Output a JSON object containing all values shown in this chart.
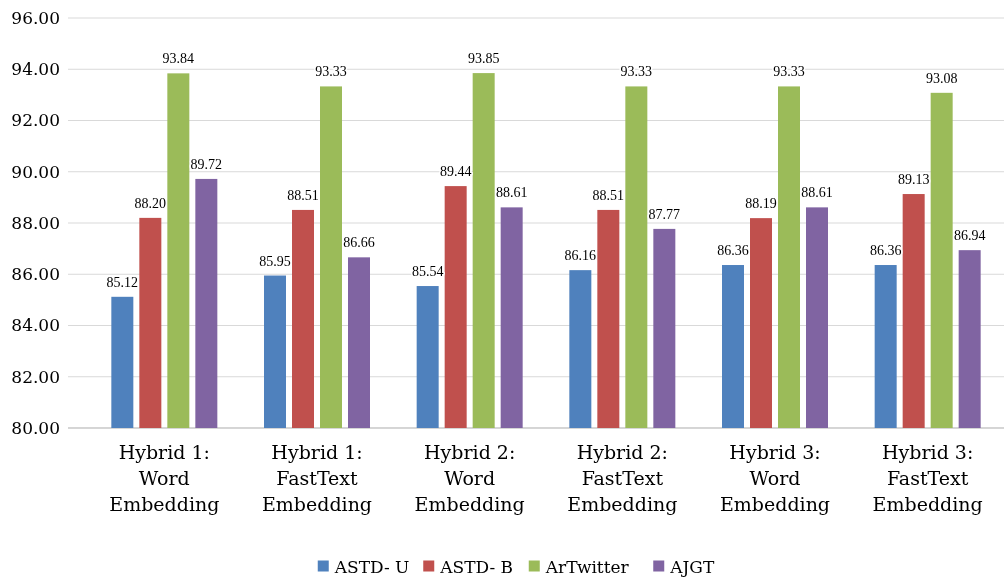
{
  "chart_data": {
    "type": "bar",
    "categories": [
      "Hybrid 1:\nWord\nEmbedding",
      "Hybrid 1:\nFastText\nEmbedding",
      "Hybrid 2:\nWord\nEmbedding",
      "Hybrid 2:\nFastText\nEmbedding",
      "Hybrid 3:\nWord\nEmbedding",
      "Hybrid 3:\nFastText\nEmbedding"
    ],
    "series": [
      {
        "name": "ASTD- U",
        "color": "#4f81bd",
        "values": [
          85.12,
          85.95,
          85.54,
          86.16,
          86.36,
          86.36
        ],
        "value_labels": [
          "85.12",
          "85.95",
          "85.54",
          "86.16",
          "86.36",
          "86.36"
        ]
      },
      {
        "name": "ASTD- B",
        "color": "#c0504d",
        "values": [
          88.2,
          88.51,
          89.44,
          88.51,
          88.19,
          89.13
        ],
        "value_labels": [
          "88.20",
          "88.51",
          "89.44",
          "88.51",
          "88.19",
          "89.13"
        ]
      },
      {
        "name": "ArTwitter",
        "color": "#9bbb59",
        "values": [
          93.84,
          93.33,
          93.85,
          93.33,
          93.33,
          93.08
        ],
        "value_labels": [
          "93.84",
          "93.33",
          "93.85",
          "93.33",
          "93.33",
          "93.08"
        ]
      },
      {
        "name": "AJGT",
        "color": "#8064a2",
        "values": [
          89.72,
          86.66,
          88.61,
          87.77,
          88.61,
          86.94
        ],
        "value_labels": [
          "89.72",
          "86.66",
          "88.61",
          "87.77",
          "88.61",
          "86.94"
        ]
      }
    ],
    "ylim": [
      80,
      96
    ],
    "yticks": [
      {
        "value": 80,
        "label": "80.00"
      },
      {
        "value": 82,
        "label": "82.00"
      },
      {
        "value": 84,
        "label": "84.00"
      },
      {
        "value": 86,
        "label": "86.00"
      },
      {
        "value": 88,
        "label": "88.00"
      },
      {
        "value": 90,
        "label": "90.00"
      },
      {
        "value": 92,
        "label": "92.00"
      },
      {
        "value": 94,
        "label": "94.00"
      },
      {
        "value": 96,
        "label": "96.00"
      }
    ],
    "grid": "y",
    "legend": "bottom"
  }
}
